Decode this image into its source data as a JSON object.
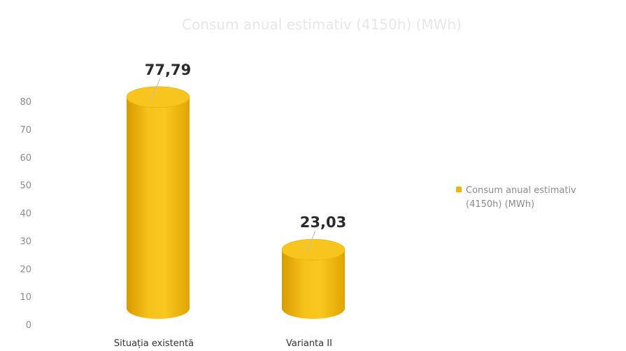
{
  "chart_data": {
    "type": "bar",
    "title": "Consum anual estimativ (4150h) (MWh)",
    "categories": [
      "Situația existentă",
      "Varianta II"
    ],
    "series": [
      {
        "name": "Consum anual estimativ (4150h) (MWh)",
        "values": [
          77.79,
          23.03
        ],
        "color": "#f2b705"
      }
    ],
    "data_labels": [
      "77,79",
      "23,03"
    ],
    "yticks": [
      "0",
      "10",
      "20",
      "30",
      "40",
      "50",
      "60",
      "70",
      "80"
    ],
    "ylim": [
      0,
      80
    ],
    "legend": {
      "position": "right",
      "lines": [
        "Consum anual estimativ",
        "(4150h) (MWh)"
      ]
    },
    "grid": false
  }
}
